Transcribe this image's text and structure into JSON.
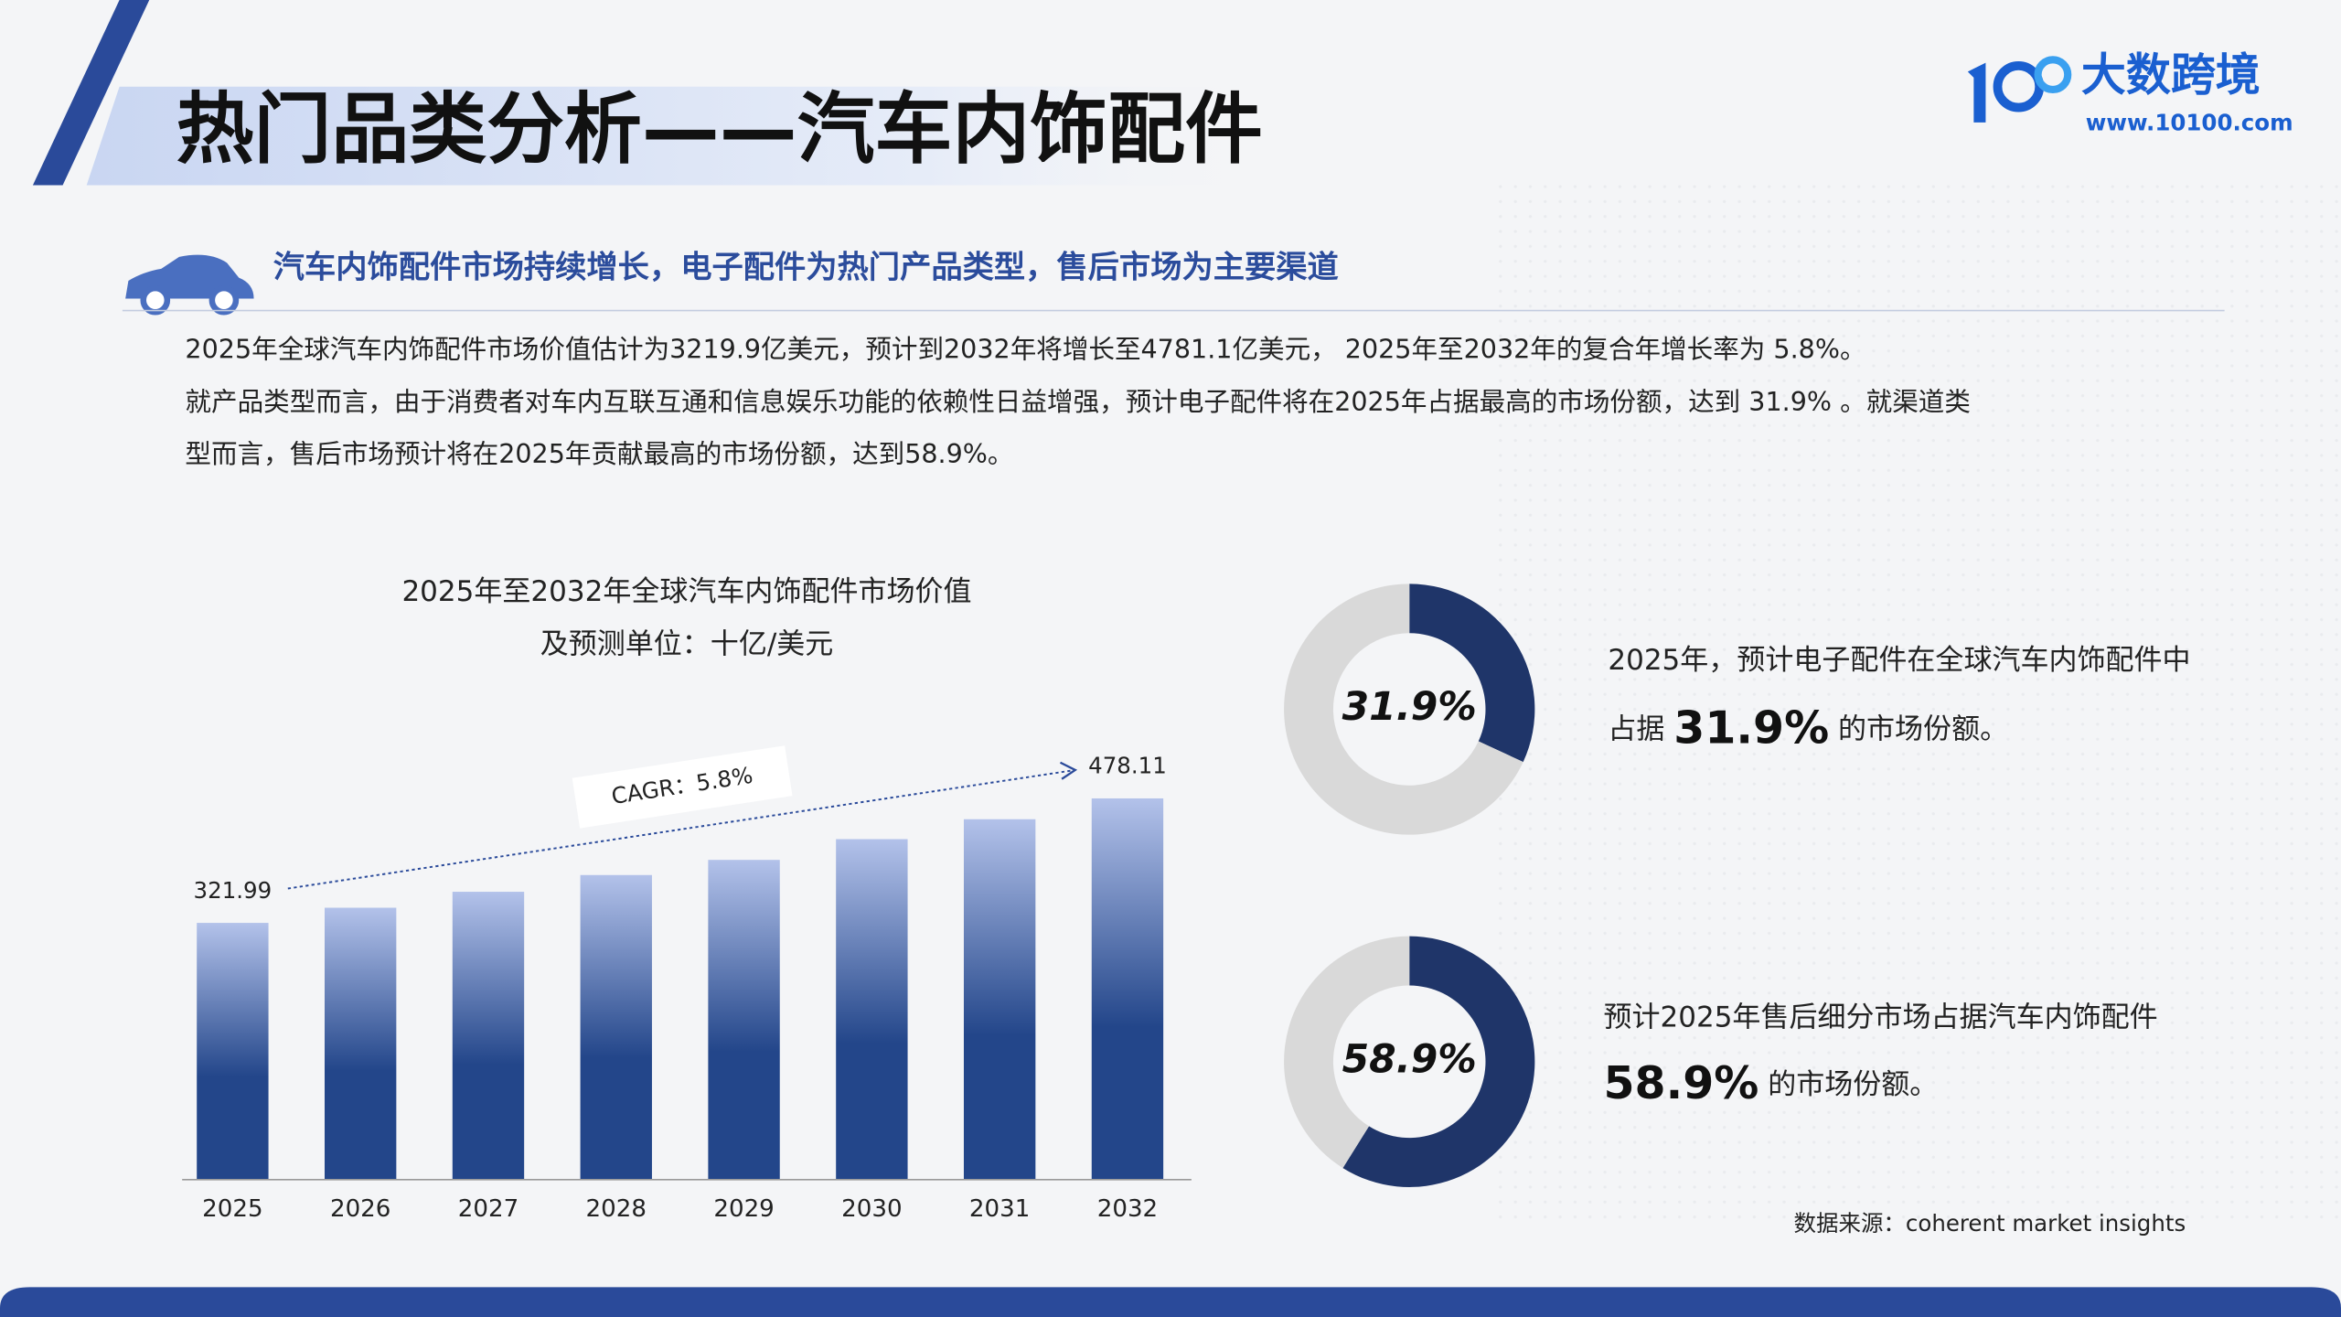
{
  "header": {
    "title": "热门品类分析——汽车内饰配件",
    "brand": "大数跨境",
    "url": "www.10100.com"
  },
  "subtitle": "汽车内饰配件市场持续增长，电子配件为热门产品类型，售后市场为主要渠道",
  "paragraphs": [
    "2025年全球汽车内饰配件市场价值估计为3219.9亿美元，预计到2032年将增长至4781.1亿美元， 2025年至2032年的复合年增长率为 5.8%。",
    "就产品类型而言，由于消费者对车内互联互通和信息娱乐功能的依赖性日益增强，预计电子配件将在2025年占据最高的市场份额，达到  31.9%  。就渠道类",
    "型而言，售后市场预计将在2025年贡献最高的市场份额，达到58.9%。"
  ],
  "chart_data": [
    {
      "type": "bar",
      "title": "2025年至2032年全球汽车内饰配件市场价值",
      "subtitle": "及预测单位：十亿/美元",
      "categories": [
        "2025",
        "2026",
        "2027",
        "2028",
        "2029",
        "2030",
        "2031",
        "2032"
      ],
      "values": [
        321.99,
        341,
        361,
        382,
        401,
        427,
        452,
        478.11
      ],
      "value_labels": [
        "321.99",
        null,
        null,
        null,
        null,
        null,
        null,
        "478.11"
      ],
      "annotation": "CAGR：5.8%",
      "color": "#23468a",
      "ylim": [
        0,
        500
      ]
    },
    {
      "type": "donut",
      "values": [
        31.9,
        68.1
      ],
      "value_labels": [
        "31.9%",
        null
      ],
      "colors": [
        "#1f3569",
        "#d9d9d9"
      ]
    },
    {
      "type": "donut",
      "values": [
        58.9,
        41.1
      ],
      "value_labels": [
        "58.9%",
        null
      ],
      "colors": [
        "#1f3569",
        "#d9d9d9"
      ]
    }
  ],
  "notes": [
    {
      "line1": "2025年，预计电子配件在全球汽车内饰配件中",
      "prefix": "占据",
      "highlight": "31.9%",
      "suffix": "的市场份额。"
    },
    {
      "line1": "预计2025年售后细分市场占据汽车内饰配件",
      "highlight": "58.9%",
      "suffix": "的市场份额。"
    }
  ],
  "source": "数据来源：coherent market insights"
}
